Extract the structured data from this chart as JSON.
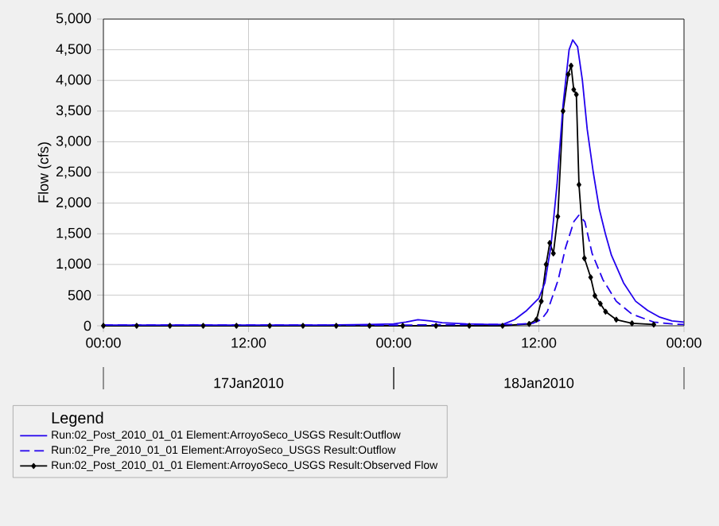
{
  "chart_data": {
    "type": "line",
    "ylabel": "Flow (cfs)",
    "legend_title": "Legend",
    "legend": "bottom",
    "grid": true,
    "annotations": [
      "17Jan2010",
      "18Jan2010"
    ],
    "xlim": [
      "2010-01-17T00:00",
      "2010-01-19T00:00"
    ],
    "xticks": [
      {
        "value": "2010-01-17T00:00",
        "label": "00:00"
      },
      {
        "value": "2010-01-17T12:00",
        "label": "12:00"
      },
      {
        "value": "2010-01-18T00:00",
        "label": "00:00"
      },
      {
        "value": "2010-01-18T12:00",
        "label": "12:00"
      },
      {
        "value": "2010-01-19T00:00",
        "label": "00:00"
      }
    ],
    "ylim": [
      0,
      5000
    ],
    "yticks": [
      0,
      500,
      {
        "value": 1000,
        "label": "1,000"
      },
      {
        "value": 1500,
        "label": "1,500"
      },
      {
        "value": 2000,
        "label": "2,000"
      },
      {
        "value": 2500,
        "label": "2,500"
      },
      {
        "value": 3000,
        "label": "3,000"
      },
      {
        "value": 3500,
        "label": "3,500"
      },
      {
        "value": 4000,
        "label": "4,000"
      },
      {
        "value": 4500,
        "label": "4,500"
      },
      {
        "value": 5000,
        "label": "5,000"
      }
    ],
    "series": [
      {
        "name": "Run:02_Post_2010_01_01 Element:ArroyoSeco_USGS Result:Outflow",
        "color": "#2200ee",
        "line_style": "solid",
        "marker": "none",
        "x": [
          "2010-01-17T00:00",
          "2010-01-17T06:00",
          "2010-01-17T12:00",
          "2010-01-17T18:00",
          "2010-01-17T22:00",
          "2010-01-18T00:00",
          "2010-01-18T01:00",
          "2010-01-18T02:00",
          "2010-01-18T03:00",
          "2010-01-18T04:00",
          "2010-01-18T06:00",
          "2010-01-18T08:00",
          "2010-01-18T09:00",
          "2010-01-18T10:00",
          "2010-01-18T11:00",
          "2010-01-18T12:00",
          "2010-01-18T12:30",
          "2010-01-18T13:00",
          "2010-01-18T13:30",
          "2010-01-18T14:00",
          "2010-01-18T14:30",
          "2010-01-18T14:48",
          "2010-01-18T15:12",
          "2010-01-18T15:36",
          "2010-01-18T16:00",
          "2010-01-18T16:30",
          "2010-01-18T17:00",
          "2010-01-18T17:30",
          "2010-01-18T18:00",
          "2010-01-18T19:00",
          "2010-01-18T20:00",
          "2010-01-18T21:00",
          "2010-01-18T22:00",
          "2010-01-18T23:00",
          "2010-01-19T00:00"
        ],
        "values": [
          10,
          10,
          10,
          10,
          20,
          30,
          60,
          100,
          80,
          50,
          30,
          20,
          20,
          100,
          250,
          450,
          700,
          1300,
          2300,
          3600,
          4500,
          4660,
          4550,
          4000,
          3200,
          2500,
          1900,
          1500,
          1150,
          700,
          400,
          250,
          140,
          80,
          60
        ]
      },
      {
        "name": "Run:02_Pre_2010_01_01 Element:ArroyoSeco_USGS Result:Outflow",
        "color": "#2200ee",
        "line_style": "dashed",
        "marker": "none",
        "x": [
          "2010-01-17T00:00",
          "2010-01-18T00:00",
          "2010-01-18T06:00",
          "2010-01-18T10:00",
          "2010-01-18T11:30",
          "2010-01-18T12:12",
          "2010-01-18T12:42",
          "2010-01-18T13:36",
          "2010-01-18T14:12",
          "2010-01-18T14:54",
          "2010-01-18T15:18",
          "2010-01-18T15:48",
          "2010-01-18T16:24",
          "2010-01-18T17:18",
          "2010-01-18T18:24",
          "2010-01-18T19:42",
          "2010-01-18T21:30",
          "2010-01-18T23:00",
          "2010-01-19T00:00"
        ],
        "values": [
          10,
          10,
          20,
          20,
          40,
          100,
          230,
          750,
          1270,
          1700,
          1800,
          1700,
          1180,
          750,
          400,
          190,
          60,
          30,
          20
        ]
      },
      {
        "name": "Run:02_Post_2010_01_01 Element:ArroyoSeco_USGS Result:Observed Flow",
        "color": "#000000",
        "line_style": "solid",
        "marker": "diamond",
        "x": [
          "2010-01-17T00:00",
          "2010-01-17T02:45",
          "2010-01-17T05:30",
          "2010-01-17T08:15",
          "2010-01-17T11:00",
          "2010-01-17T13:45",
          "2010-01-17T16:30",
          "2010-01-17T19:15",
          "2010-01-17T22:00",
          "2010-01-18T00:45",
          "2010-01-18T03:30",
          "2010-01-18T06:15",
          "2010-01-18T09:00",
          "2010-01-18T11:12",
          "2010-01-18T11:48",
          "2010-01-18T12:12",
          "2010-01-18T12:36",
          "2010-01-18T12:54",
          "2010-01-18T13:12",
          "2010-01-18T13:34",
          "2010-01-18T14:00",
          "2010-01-18T14:26",
          "2010-01-18T14:40",
          "2010-01-18T14:53",
          "2010-01-18T15:06",
          "2010-01-18T15:19",
          "2010-01-18T15:46",
          "2010-01-18T16:17",
          "2010-01-18T16:38",
          "2010-01-18T17:05",
          "2010-01-18T17:31",
          "2010-01-18T18:24",
          "2010-01-18T19:42",
          "2010-01-18T21:30"
        ],
        "values": [
          0,
          0,
          0,
          0,
          0,
          0,
          0,
          0,
          0,
          0,
          0,
          0,
          0,
          30,
          100,
          400,
          1000,
          1350,
          1180,
          1780,
          3500,
          4100,
          4240,
          3850,
          3770,
          2300,
          1100,
          790,
          490,
          360,
          230,
          100,
          40,
          20
        ]
      }
    ]
  }
}
